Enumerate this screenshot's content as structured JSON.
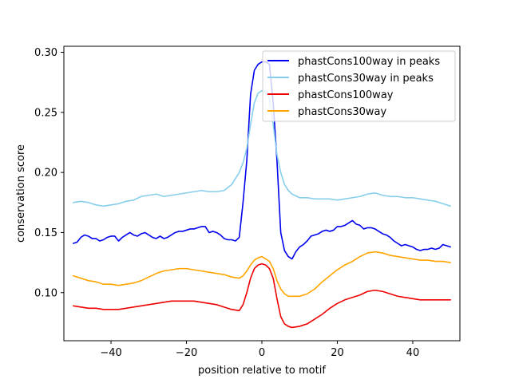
{
  "chart_data": {
    "type": "line",
    "title": "",
    "xlabel": "position relative to motif",
    "ylabel": "conservation score",
    "xlim": [
      -52.5,
      52.5
    ],
    "ylim": [
      0.06,
      0.305
    ],
    "xticks": [
      -40,
      -20,
      0,
      20,
      40
    ],
    "xtick_labels": [
      "−40",
      "−20",
      "0",
      "20",
      "40"
    ],
    "yticks": [
      0.1,
      0.15,
      0.2,
      0.25,
      0.3
    ],
    "ytick_labels": [
      "0.10",
      "0.15",
      "0.20",
      "0.25",
      "0.30"
    ],
    "grid": false,
    "legend_position": "top-right",
    "series": [
      {
        "name": "phastCons100way in peaks",
        "color": "#0000ee",
        "points": [
          [
            -50,
            0.141
          ],
          [
            -49,
            0.142
          ],
          [
            -48,
            0.146
          ],
          [
            -47,
            0.148
          ],
          [
            -46,
            0.147
          ],
          [
            -45,
            0.145
          ],
          [
            -44,
            0.145
          ],
          [
            -43,
            0.143
          ],
          [
            -42,
            0.144
          ],
          [
            -41,
            0.146
          ],
          [
            -40,
            0.147
          ],
          [
            -39,
            0.147
          ],
          [
            -38,
            0.143
          ],
          [
            -37,
            0.146
          ],
          [
            -36,
            0.148
          ],
          [
            -35,
            0.15
          ],
          [
            -34,
            0.148
          ],
          [
            -33,
            0.147
          ],
          [
            -32,
            0.149
          ],
          [
            -31,
            0.15
          ],
          [
            -30,
            0.148
          ],
          [
            -29,
            0.146
          ],
          [
            -28,
            0.145
          ],
          [
            -27,
            0.147
          ],
          [
            -26,
            0.145
          ],
          [
            -25,
            0.146
          ],
          [
            -24,
            0.148
          ],
          [
            -23,
            0.15
          ],
          [
            -22,
            0.151
          ],
          [
            -21,
            0.151
          ],
          [
            -20,
            0.152
          ],
          [
            -19,
            0.153
          ],
          [
            -18,
            0.153
          ],
          [
            -17,
            0.154
          ],
          [
            -16,
            0.155
          ],
          [
            -15,
            0.155
          ],
          [
            -14,
            0.15
          ],
          [
            -13,
            0.151
          ],
          [
            -12,
            0.15
          ],
          [
            -11,
            0.148
          ],
          [
            -10,
            0.145
          ],
          [
            -9,
            0.144
          ],
          [
            -8,
            0.144
          ],
          [
            -7,
            0.143
          ],
          [
            -6,
            0.146
          ],
          [
            -5,
            0.175
          ],
          [
            -4,
            0.21
          ],
          [
            -3,
            0.265
          ],
          [
            -2,
            0.285
          ],
          [
            -1,
            0.29
          ],
          [
            0,
            0.292
          ],
          [
            1,
            0.292
          ],
          [
            2,
            0.29
          ],
          [
            3,
            0.258
          ],
          [
            4,
            0.21
          ],
          [
            5,
            0.15
          ],
          [
            6,
            0.135
          ],
          [
            7,
            0.13
          ],
          [
            8,
            0.128
          ],
          [
            9,
            0.134
          ],
          [
            10,
            0.138
          ],
          [
            11,
            0.14
          ],
          [
            12,
            0.143
          ],
          [
            13,
            0.147
          ],
          [
            14,
            0.148
          ],
          [
            15,
            0.149
          ],
          [
            16,
            0.151
          ],
          [
            17,
            0.152
          ],
          [
            18,
            0.151
          ],
          [
            19,
            0.152
          ],
          [
            20,
            0.155
          ],
          [
            21,
            0.155
          ],
          [
            22,
            0.156
          ],
          [
            23,
            0.158
          ],
          [
            24,
            0.16
          ],
          [
            25,
            0.157
          ],
          [
            26,
            0.156
          ],
          [
            27,
            0.153
          ],
          [
            28,
            0.154
          ],
          [
            29,
            0.154
          ],
          [
            30,
            0.153
          ],
          [
            31,
            0.151
          ],
          [
            32,
            0.149
          ],
          [
            33,
            0.148
          ],
          [
            34,
            0.146
          ],
          [
            35,
            0.143
          ],
          [
            36,
            0.141
          ],
          [
            37,
            0.139
          ],
          [
            38,
            0.14
          ],
          [
            39,
            0.139
          ],
          [
            40,
            0.138
          ],
          [
            41,
            0.136
          ],
          [
            42,
            0.135
          ],
          [
            43,
            0.136
          ],
          [
            44,
            0.136
          ],
          [
            45,
            0.137
          ],
          [
            46,
            0.136
          ],
          [
            47,
            0.137
          ],
          [
            48,
            0.14
          ],
          [
            49,
            0.139
          ],
          [
            50,
            0.138
          ]
        ]
      },
      {
        "name": "phastCons30way in peaks",
        "color": "#87ceeb",
        "points": [
          [
            -50,
            0.175
          ],
          [
            -48,
            0.176
          ],
          [
            -46,
            0.175
          ],
          [
            -44,
            0.173
          ],
          [
            -42,
            0.172
          ],
          [
            -40,
            0.173
          ],
          [
            -38,
            0.174
          ],
          [
            -36,
            0.176
          ],
          [
            -34,
            0.177
          ],
          [
            -32,
            0.18
          ],
          [
            -30,
            0.181
          ],
          [
            -28,
            0.182
          ],
          [
            -26,
            0.18
          ],
          [
            -24,
            0.181
          ],
          [
            -22,
            0.182
          ],
          [
            -20,
            0.183
          ],
          [
            -18,
            0.184
          ],
          [
            -16,
            0.185
          ],
          [
            -14,
            0.184
          ],
          [
            -12,
            0.184
          ],
          [
            -10,
            0.185
          ],
          [
            -8,
            0.19
          ],
          [
            -6,
            0.2
          ],
          [
            -5,
            0.208
          ],
          [
            -4,
            0.22
          ],
          [
            -3,
            0.24
          ],
          [
            -2,
            0.258
          ],
          [
            -1,
            0.266
          ],
          [
            0,
            0.268
          ],
          [
            1,
            0.267
          ],
          [
            2,
            0.262
          ],
          [
            3,
            0.24
          ],
          [
            4,
            0.215
          ],
          [
            5,
            0.2
          ],
          [
            6,
            0.19
          ],
          [
            7,
            0.185
          ],
          [
            8,
            0.182
          ],
          [
            10,
            0.179
          ],
          [
            12,
            0.179
          ],
          [
            14,
            0.178
          ],
          [
            16,
            0.178
          ],
          [
            18,
            0.178
          ],
          [
            20,
            0.177
          ],
          [
            22,
            0.178
          ],
          [
            24,
            0.179
          ],
          [
            26,
            0.18
          ],
          [
            28,
            0.182
          ],
          [
            30,
            0.183
          ],
          [
            32,
            0.181
          ],
          [
            34,
            0.18
          ],
          [
            36,
            0.18
          ],
          [
            38,
            0.179
          ],
          [
            40,
            0.179
          ],
          [
            42,
            0.178
          ],
          [
            44,
            0.177
          ],
          [
            46,
            0.176
          ],
          [
            48,
            0.174
          ],
          [
            50,
            0.172
          ]
        ]
      },
      {
        "name": "phastCons100way",
        "color": "#ee0000",
        "points": [
          [
            -50,
            0.089
          ],
          [
            -48,
            0.088
          ],
          [
            -46,
            0.087
          ],
          [
            -44,
            0.087
          ],
          [
            -42,
            0.086
          ],
          [
            -40,
            0.086
          ],
          [
            -38,
            0.086
          ],
          [
            -36,
            0.087
          ],
          [
            -34,
            0.088
          ],
          [
            -32,
            0.089
          ],
          [
            -30,
            0.09
          ],
          [
            -28,
            0.091
          ],
          [
            -26,
            0.092
          ],
          [
            -24,
            0.093
          ],
          [
            -22,
            0.093
          ],
          [
            -20,
            0.093
          ],
          [
            -18,
            0.093
          ],
          [
            -16,
            0.092
          ],
          [
            -14,
            0.091
          ],
          [
            -12,
            0.09
          ],
          [
            -10,
            0.088
          ],
          [
            -8,
            0.086
          ],
          [
            -6,
            0.085
          ],
          [
            -5,
            0.09
          ],
          [
            -4,
            0.1
          ],
          [
            -3,
            0.112
          ],
          [
            -2,
            0.12
          ],
          [
            -1,
            0.123
          ],
          [
            0,
            0.124
          ],
          [
            1,
            0.123
          ],
          [
            2,
            0.12
          ],
          [
            3,
            0.112
          ],
          [
            4,
            0.095
          ],
          [
            5,
            0.08
          ],
          [
            6,
            0.074
          ],
          [
            7,
            0.072
          ],
          [
            8,
            0.071
          ],
          [
            10,
            0.072
          ],
          [
            12,
            0.074
          ],
          [
            14,
            0.078
          ],
          [
            16,
            0.082
          ],
          [
            18,
            0.087
          ],
          [
            20,
            0.091
          ],
          [
            22,
            0.094
          ],
          [
            24,
            0.096
          ],
          [
            26,
            0.098
          ],
          [
            28,
            0.101
          ],
          [
            30,
            0.102
          ],
          [
            32,
            0.101
          ],
          [
            34,
            0.099
          ],
          [
            36,
            0.097
          ],
          [
            38,
            0.096
          ],
          [
            40,
            0.095
          ],
          [
            42,
            0.094
          ],
          [
            44,
            0.094
          ],
          [
            46,
            0.094
          ],
          [
            48,
            0.094
          ],
          [
            50,
            0.094
          ]
        ]
      },
      {
        "name": "phastCons30way",
        "color": "#ffa500",
        "points": [
          [
            -50,
            0.114
          ],
          [
            -48,
            0.112
          ],
          [
            -46,
            0.11
          ],
          [
            -44,
            0.109
          ],
          [
            -42,
            0.107
          ],
          [
            -40,
            0.107
          ],
          [
            -38,
            0.106
          ],
          [
            -36,
            0.107
          ],
          [
            -34,
            0.108
          ],
          [
            -32,
            0.11
          ],
          [
            -30,
            0.113
          ],
          [
            -28,
            0.116
          ],
          [
            -26,
            0.118
          ],
          [
            -24,
            0.119
          ],
          [
            -22,
            0.12
          ],
          [
            -20,
            0.12
          ],
          [
            -18,
            0.119
          ],
          [
            -16,
            0.118
          ],
          [
            -14,
            0.117
          ],
          [
            -12,
            0.116
          ],
          [
            -10,
            0.115
          ],
          [
            -8,
            0.113
          ],
          [
            -6,
            0.112
          ],
          [
            -5,
            0.114
          ],
          [
            -4,
            0.118
          ],
          [
            -3,
            0.123
          ],
          [
            -2,
            0.127
          ],
          [
            -1,
            0.129
          ],
          [
            0,
            0.13
          ],
          [
            1,
            0.128
          ],
          [
            2,
            0.126
          ],
          [
            3,
            0.12
          ],
          [
            4,
            0.11
          ],
          [
            5,
            0.103
          ],
          [
            6,
            0.099
          ],
          [
            7,
            0.097
          ],
          [
            8,
            0.097
          ],
          [
            10,
            0.097
          ],
          [
            12,
            0.099
          ],
          [
            14,
            0.103
          ],
          [
            16,
            0.109
          ],
          [
            18,
            0.114
          ],
          [
            20,
            0.119
          ],
          [
            22,
            0.123
          ],
          [
            24,
            0.126
          ],
          [
            26,
            0.13
          ],
          [
            28,
            0.133
          ],
          [
            30,
            0.134
          ],
          [
            32,
            0.133
          ],
          [
            34,
            0.131
          ],
          [
            36,
            0.13
          ],
          [
            38,
            0.129
          ],
          [
            40,
            0.128
          ],
          [
            42,
            0.127
          ],
          [
            44,
            0.127
          ],
          [
            46,
            0.126
          ],
          [
            48,
            0.126
          ],
          [
            50,
            0.125
          ]
        ]
      }
    ]
  }
}
